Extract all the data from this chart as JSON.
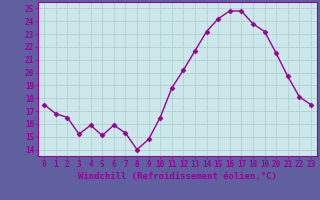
{
  "x": [
    0,
    1,
    2,
    3,
    4,
    5,
    6,
    7,
    8,
    9,
    10,
    11,
    12,
    13,
    14,
    15,
    16,
    17,
    18,
    19,
    20,
    21,
    22,
    23
  ],
  "y": [
    17.5,
    16.8,
    16.5,
    15.2,
    15.9,
    15.1,
    15.9,
    15.3,
    14.0,
    14.8,
    16.5,
    18.8,
    20.2,
    21.7,
    23.2,
    24.2,
    24.8,
    24.8,
    23.8,
    23.2,
    21.5,
    19.7,
    18.1,
    17.5
  ],
  "line_color": "#990099",
  "marker": "D",
  "marker_size": 2.5,
  "linewidth": 1.0,
  "xlabel": "Windchill (Refroidissement éolien,°C)",
  "xlabel_fontsize": 6.5,
  "ylim": [
    13.5,
    25.5
  ],
  "xlim": [
    -0.5,
    23.5
  ],
  "yticks": [
    14,
    15,
    16,
    17,
    18,
    19,
    20,
    21,
    22,
    23,
    24,
    25
  ],
  "ytick_labels": [
    "14",
    "15",
    "16",
    "17",
    "18",
    "19",
    "20",
    "21",
    "22",
    "23",
    "24",
    "25"
  ],
  "xticks": [
    0,
    1,
    2,
    3,
    4,
    5,
    6,
    7,
    8,
    9,
    10,
    11,
    12,
    13,
    14,
    15,
    16,
    17,
    18,
    19,
    20,
    21,
    22,
    23
  ],
  "xtick_labels": [
    "0",
    "1",
    "2",
    "3",
    "4",
    "5",
    "6",
    "7",
    "8",
    "9",
    "10",
    "11",
    "12",
    "13",
    "14",
    "15",
    "16",
    "17",
    "18",
    "19",
    "20",
    "21",
    "22",
    "23"
  ],
  "grid_color": "#aacccc",
  "bg_color": "#cce8ea",
  "tick_fontsize": 5.5,
  "fig_bg": "#6060a0",
  "border_color": "#990099",
  "xlabel_fontweight": "bold"
}
